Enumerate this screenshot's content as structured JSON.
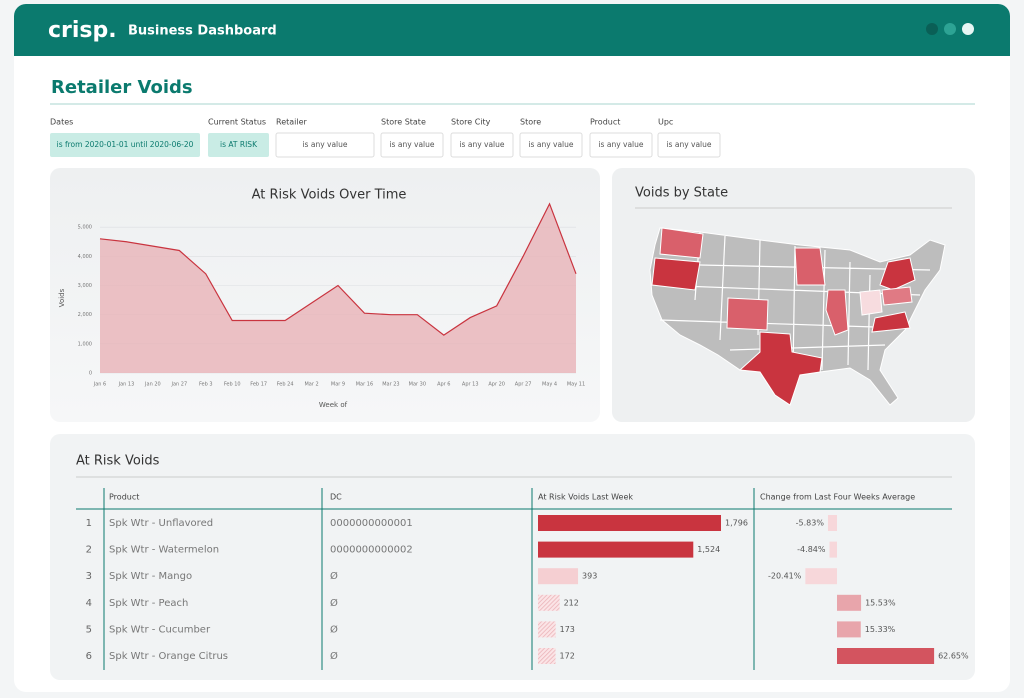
{
  "header": {
    "logo": "crisp.",
    "title": "Business Dashboard"
  },
  "page_title": "Retailer Voids",
  "filters": [
    {
      "label": "Dates",
      "value": "is from 2020-01-01 until 2020-06-20"
    },
    {
      "label": "Current Status",
      "value": "is AT RISK"
    },
    {
      "label": "Retailer",
      "value": "is any value"
    },
    {
      "label": "Store State",
      "value": "is any value"
    },
    {
      "label": "Store City",
      "value": "is any value"
    },
    {
      "label": "Store",
      "value": "is any value"
    },
    {
      "label": "Product",
      "value": "is any value"
    },
    {
      "label": "Upc",
      "value": "is any value"
    }
  ],
  "chart_data": {
    "type": "area",
    "title": "At Risk Voids Over Time",
    "x_label": "Week of",
    "y_label": "Voids",
    "categories": [
      "Jan 6",
      "Jan 13",
      "Jan 20",
      "Jan 27",
      "Feb 3",
      "Feb 10",
      "Feb 17",
      "Feb 24",
      "Mar 2",
      "Mar 9",
      "Mar 16",
      "Mar 23",
      "Mar 30",
      "Apr 6",
      "Apr 13",
      "Apr 20",
      "Apr 27",
      "May 4",
      "May 11"
    ],
    "values": [
      4600,
      4500,
      4350,
      4200,
      3400,
      1800,
      1800,
      1800,
      2400,
      3000,
      2050,
      2000,
      2000,
      1300,
      1900,
      2300,
      4000,
      5800,
      3400
    ],
    "color": "#c9343f",
    "fill_color": "#e9b3b8",
    "ylim": [
      0,
      6000
    ],
    "yticks": [
      0,
      {
        "value": 1000,
        "label": "1,000"
      },
      {
        "value": 2000,
        "label": "2,000"
      },
      {
        "value": 3000,
        "label": "3,000"
      },
      {
        "value": 4000,
        "label": "4,000"
      },
      {
        "value": 5000,
        "label": "5,000"
      }
    ],
    "grid": true
  },
  "map": {
    "title": "Voids by State"
  },
  "table": {
    "title": "At Risk Voids",
    "columns": [
      "Product",
      "DC",
      "At Risk Voids Last Week",
      "Change from Last Four Weeks Average"
    ],
    "rows": [
      {
        "index": "1",
        "product": "Spk Wtr - Unflavored",
        "dc": "0000000000001",
        "voids": 1796,
        "voids_label": "1,796",
        "change": -5.83,
        "change_label": "-5.83%"
      },
      {
        "index": "2",
        "product": "Spk Wtr - Watermelon",
        "dc": "0000000000002",
        "voids": 1524,
        "voids_label": "1,524",
        "change": -4.84,
        "change_label": "-4.84%"
      },
      {
        "index": "3",
        "product": "Spk Wtr - Mango",
        "dc": "Ø",
        "voids": 393,
        "voids_label": "393",
        "change": -20.41,
        "change_label": "-20.41%"
      },
      {
        "index": "4",
        "product": "Spk Wtr - Peach",
        "dc": "Ø",
        "voids": 212,
        "voids_label": "212",
        "change": 15.53,
        "change_label": "15.53%"
      },
      {
        "index": "5",
        "product": "Spk Wtr - Cucumber",
        "dc": "Ø",
        "voids": 173,
        "voids_label": "173",
        "change": 15.33,
        "change_label": "15.33%"
      },
      {
        "index": "6",
        "product": "Spk Wtr - Orange Citrus",
        "dc": "Ø",
        "voids": 172,
        "voids_label": "172",
        "change": 62.65,
        "change_label": "62.65%"
      }
    ]
  }
}
